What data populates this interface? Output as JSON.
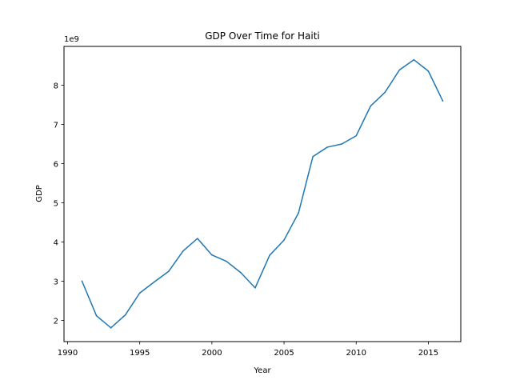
{
  "chart_data": {
    "type": "line",
    "title": "GDP Over Time for Haiti",
    "xlabel": "Year",
    "ylabel": "GDP",
    "y_offset_label": "1e9",
    "xlim": [
      1989.75,
      2017.25
    ],
    "ylim": [
      1.46,
      8.99
    ],
    "xticks": [
      1990,
      1995,
      2000,
      2005,
      2010,
      2015
    ],
    "yticks": [
      2,
      3,
      4,
      5,
      6,
      7,
      8
    ],
    "grid": false,
    "line_color": "#1f77b4",
    "series": [
      {
        "x": [
          1991,
          1992,
          1993,
          1994,
          1995,
          1996,
          1997,
          1998,
          1999,
          2000,
          2001,
          2002,
          2003,
          2004,
          2005,
          2006,
          2007,
          2008,
          2009,
          2010,
          2011,
          2012,
          2013,
          2014,
          2015,
          2016
        ],
        "values": [
          3.0,
          2.12,
          1.81,
          2.14,
          2.7,
          2.98,
          3.25,
          3.77,
          4.09,
          3.67,
          3.51,
          3.22,
          2.83,
          3.66,
          4.05,
          4.74,
          6.18,
          6.42,
          6.5,
          6.71,
          7.47,
          7.82,
          8.39,
          8.65,
          8.36,
          7.6
        ]
      }
    ]
  }
}
